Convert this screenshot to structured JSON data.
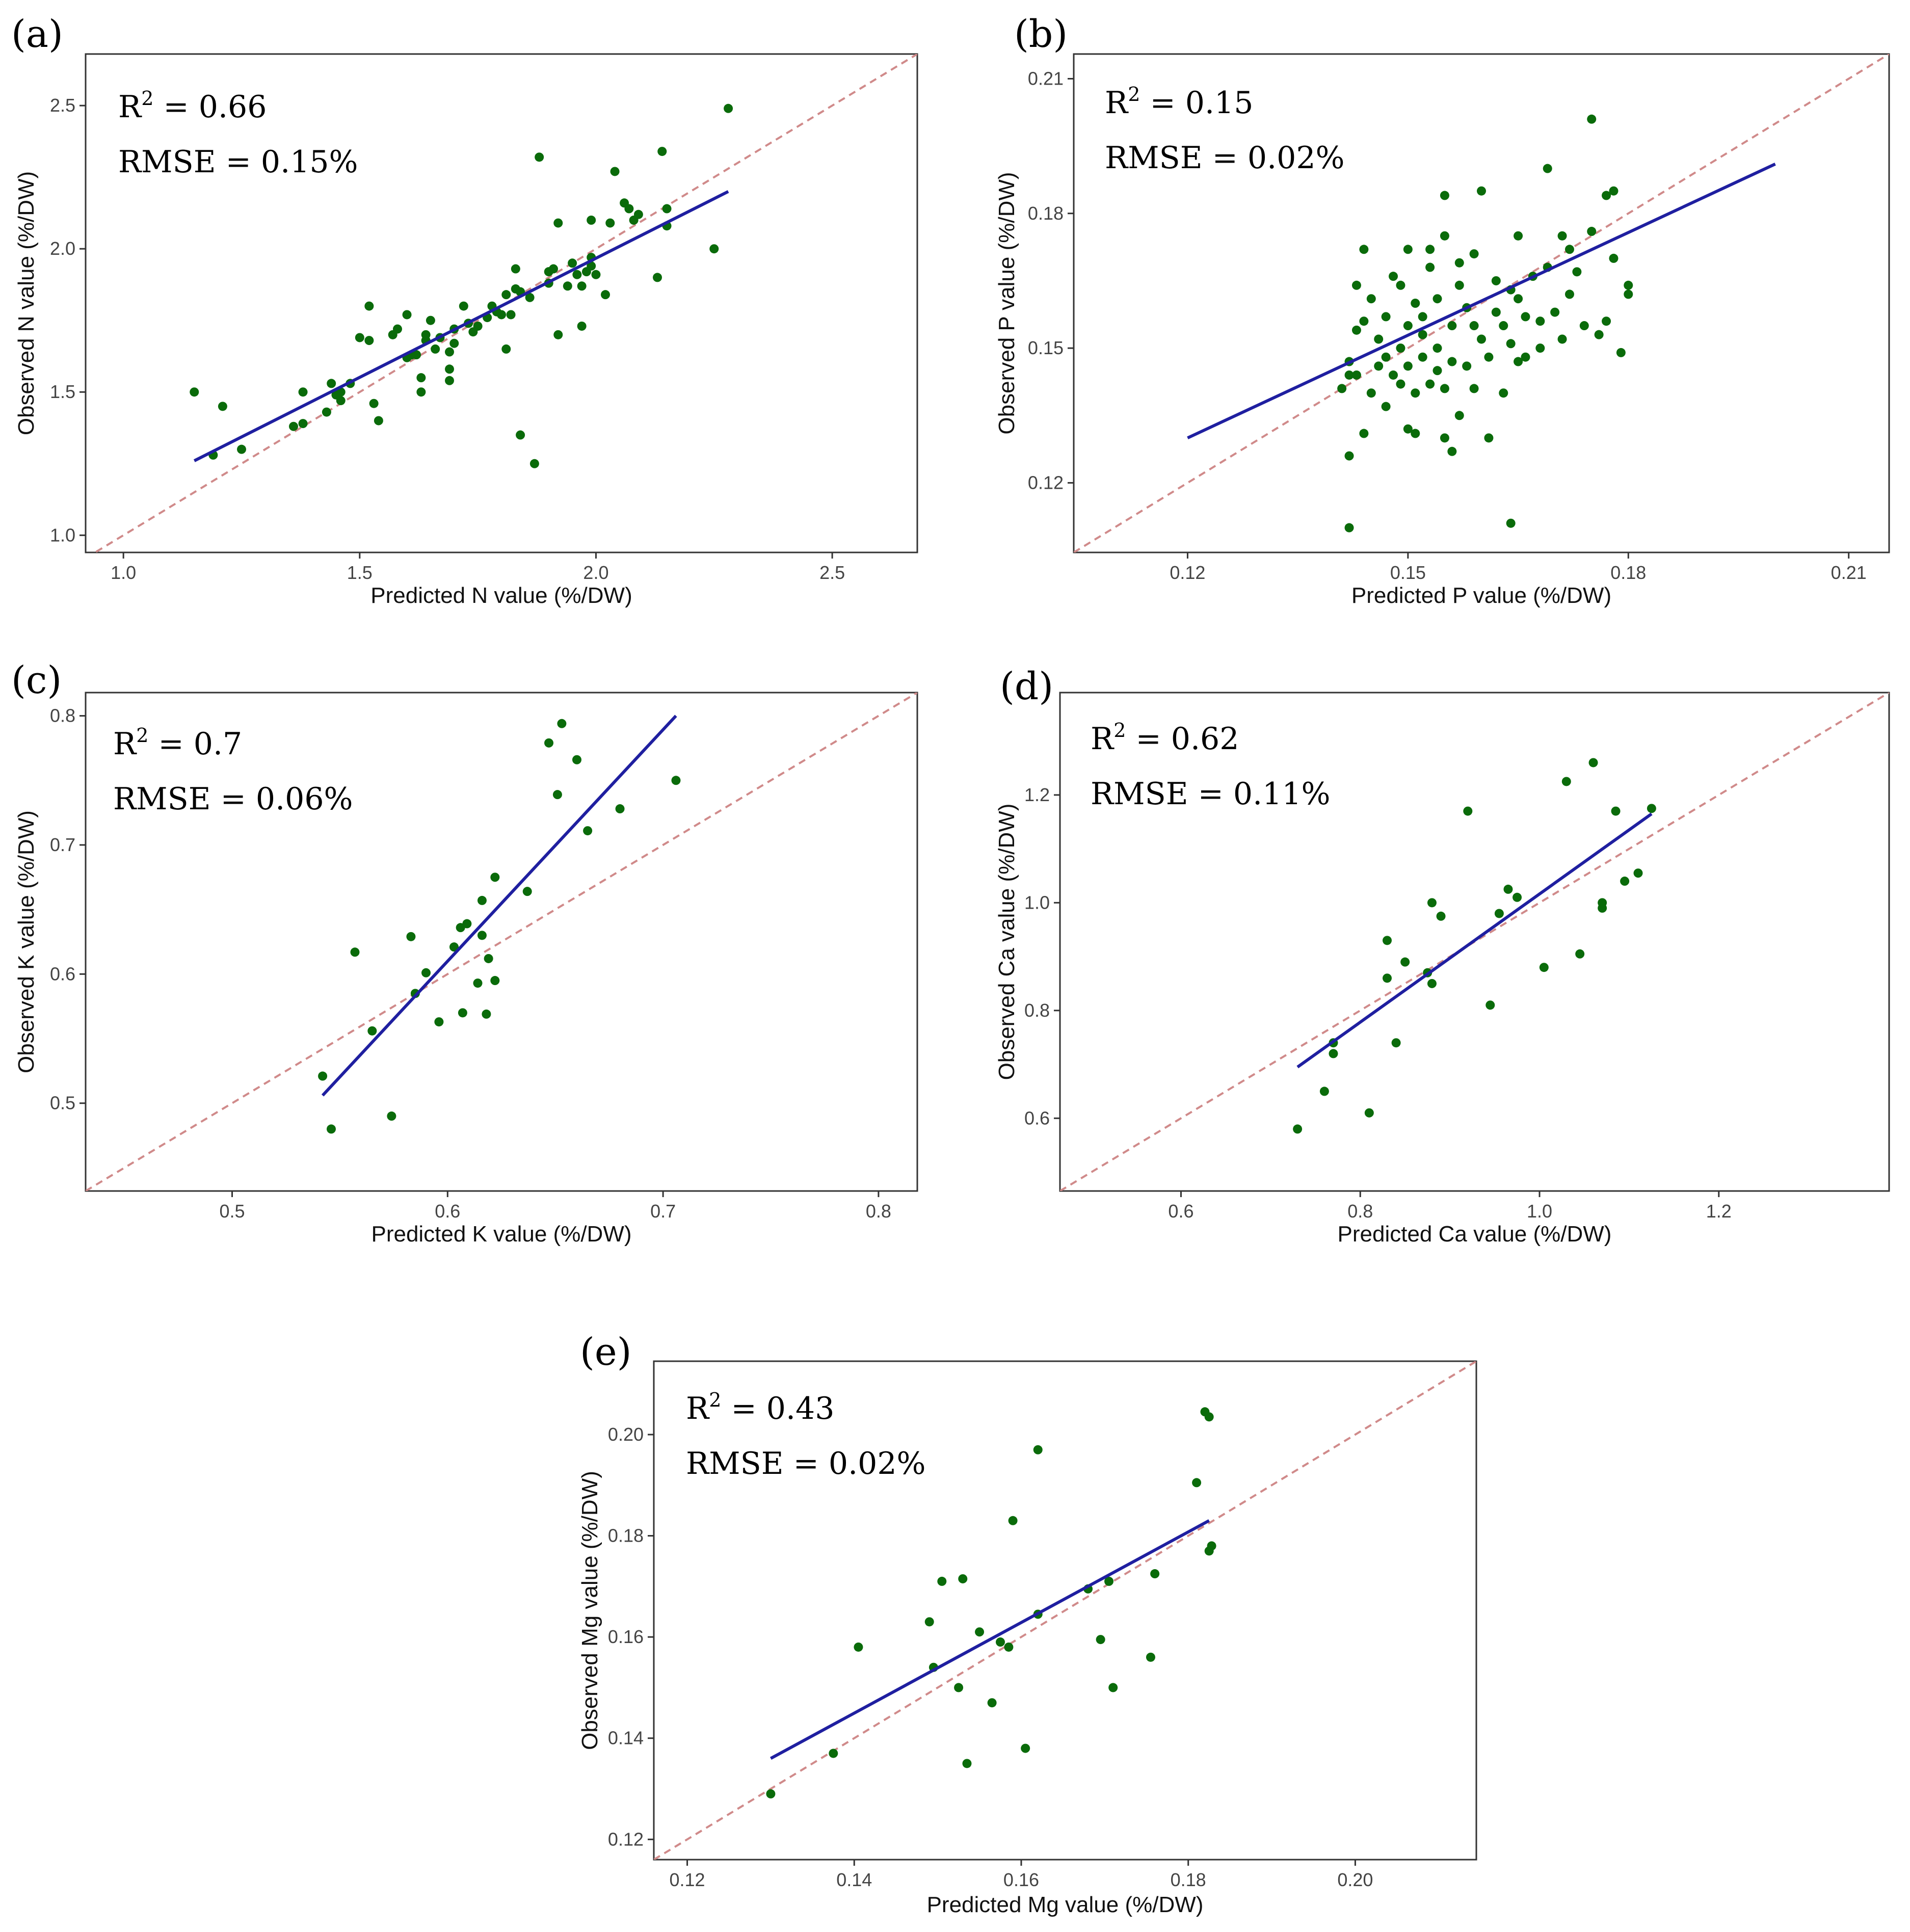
{
  "figure": {
    "colors": {
      "points": "#0a6b0a",
      "fit_line": "#1f1fa0",
      "identity_line": "#d08a8a",
      "frame": "#333333"
    }
  },
  "chart_data": [
    {
      "id": "a",
      "panel_label": "(a)",
      "type": "scatter",
      "xlabel": "Predicted N value (%/DW)",
      "ylabel": "Observed N value (%/DW)",
      "xlim": [
        0.92,
        2.68
      ],
      "ylim": [
        0.94,
        2.68
      ],
      "xticks": [
        1.0,
        1.5,
        2.0,
        2.5
      ],
      "yticks": [
        1.0,
        1.5,
        2.0,
        2.5
      ],
      "xtick_labels": [
        "1.0",
        "1.5",
        "2.0",
        "2.5"
      ],
      "ytick_labels": [
        "1.0",
        "1.5",
        "2.0",
        "2.5"
      ],
      "r2_label": "R",
      "r2_sup": "2",
      "r2_value": " = 0.66",
      "rmse_text": "RMSE = 0.15%",
      "fit_line": {
        "x": [
          1.15,
          2.28
        ],
        "y": [
          1.26,
          2.2
        ]
      },
      "points": [
        [
          1.15,
          1.5
        ],
        [
          1.19,
          1.28
        ],
        [
          1.21,
          1.45
        ],
        [
          1.25,
          1.3
        ],
        [
          1.36,
          1.38
        ],
        [
          1.38,
          1.39
        ],
        [
          1.38,
          1.5
        ],
        [
          1.43,
          1.43
        ],
        [
          1.44,
          1.53
        ],
        [
          1.45,
          1.49
        ],
        [
          1.46,
          1.5
        ],
        [
          1.46,
          1.47
        ],
        [
          1.48,
          1.53
        ],
        [
          1.5,
          1.69
        ],
        [
          1.52,
          1.8
        ],
        [
          1.52,
          1.68
        ],
        [
          1.53,
          1.46
        ],
        [
          1.54,
          1.4
        ],
        [
          1.57,
          1.7
        ],
        [
          1.58,
          1.72
        ],
        [
          1.6,
          1.77
        ],
        [
          1.6,
          1.62
        ],
        [
          1.61,
          1.63
        ],
        [
          1.62,
          1.63
        ],
        [
          1.63,
          1.55
        ],
        [
          1.63,
          1.5
        ],
        [
          1.64,
          1.7
        ],
        [
          1.64,
          1.68
        ],
        [
          1.65,
          1.75
        ],
        [
          1.66,
          1.65
        ],
        [
          1.67,
          1.69
        ],
        [
          1.69,
          1.58
        ],
        [
          1.69,
          1.54
        ],
        [
          1.69,
          1.64
        ],
        [
          1.7,
          1.67
        ],
        [
          1.7,
          1.72
        ],
        [
          1.72,
          1.8
        ],
        [
          1.73,
          1.74
        ],
        [
          1.74,
          1.71
        ],
        [
          1.75,
          1.73
        ],
        [
          1.77,
          1.76
        ],
        [
          1.78,
          1.8
        ],
        [
          1.79,
          1.78
        ],
        [
          1.8,
          1.77
        ],
        [
          1.81,
          1.84
        ],
        [
          1.81,
          1.65
        ],
        [
          1.82,
          1.77
        ],
        [
          1.83,
          1.93
        ],
        [
          1.83,
          1.86
        ],
        [
          1.84,
          1.35
        ],
        [
          1.84,
          1.85
        ],
        [
          1.86,
          1.83
        ],
        [
          1.87,
          1.25
        ],
        [
          1.88,
          2.32
        ],
        [
          1.9,
          1.88
        ],
        [
          1.9,
          1.92
        ],
        [
          1.91,
          1.93
        ],
        [
          1.92,
          1.7
        ],
        [
          1.92,
          2.09
        ],
        [
          1.94,
          1.87
        ],
        [
          1.95,
          1.95
        ],
        [
          1.96,
          1.91
        ],
        [
          1.97,
          1.73
        ],
        [
          1.97,
          1.87
        ],
        [
          1.98,
          1.92
        ],
        [
          1.99,
          2.1
        ],
        [
          1.99,
          1.97
        ],
        [
          1.99,
          1.94
        ],
        [
          2.0,
          1.91
        ],
        [
          2.02,
          1.84
        ],
        [
          2.03,
          2.09
        ],
        [
          2.04,
          2.27
        ],
        [
          2.06,
          2.16
        ],
        [
          2.07,
          2.14
        ],
        [
          2.08,
          2.1
        ],
        [
          2.09,
          2.12
        ],
        [
          2.13,
          1.9
        ],
        [
          2.14,
          2.34
        ],
        [
          2.15,
          2.08
        ],
        [
          2.15,
          2.14
        ],
        [
          2.25,
          2.0
        ],
        [
          2.28,
          2.49
        ]
      ]
    },
    {
      "id": "b",
      "panel_label": "(b)",
      "type": "scatter",
      "xlabel": "Predicted P value (%/DW)",
      "ylabel": "Observed P value (%/DW)",
      "xlim": [
        0.1045,
        0.2155
      ],
      "ylim": [
        0.1045,
        0.2155
      ],
      "xticks": [
        0.12,
        0.15,
        0.18,
        0.21
      ],
      "yticks": [
        0.12,
        0.15,
        0.18,
        0.21
      ],
      "xtick_labels": [
        "0.12",
        "0.15",
        "0.18",
        "0.21"
      ],
      "ytick_labels": [
        "0.12",
        "0.15",
        "0.18",
        "0.21"
      ],
      "r2_label": "R",
      "r2_sup": "2",
      "r2_value": " = 0.15",
      "rmse_text": "RMSE = 0.02%",
      "fit_line": {
        "x": [
          0.12,
          0.2
        ],
        "y": [
          0.13,
          0.191
        ]
      },
      "points": [
        [
          0.141,
          0.141
        ],
        [
          0.142,
          0.144
        ],
        [
          0.142,
          0.147
        ],
        [
          0.142,
          0.11
        ],
        [
          0.142,
          0.126
        ],
        [
          0.143,
          0.154
        ],
        [
          0.143,
          0.144
        ],
        [
          0.143,
          0.164
        ],
        [
          0.144,
          0.131
        ],
        [
          0.144,
          0.156
        ],
        [
          0.144,
          0.172
        ],
        [
          0.145,
          0.14
        ],
        [
          0.145,
          0.161
        ],
        [
          0.146,
          0.146
        ],
        [
          0.146,
          0.152
        ],
        [
          0.147,
          0.137
        ],
        [
          0.147,
          0.148
        ],
        [
          0.147,
          0.157
        ],
        [
          0.148,
          0.144
        ],
        [
          0.148,
          0.166
        ],
        [
          0.149,
          0.15
        ],
        [
          0.149,
          0.142
        ],
        [
          0.149,
          0.164
        ],
        [
          0.15,
          0.132
        ],
        [
          0.15,
          0.146
        ],
        [
          0.15,
          0.155
        ],
        [
          0.15,
          0.172
        ],
        [
          0.151,
          0.131
        ],
        [
          0.151,
          0.14
        ],
        [
          0.151,
          0.16
        ],
        [
          0.152,
          0.153
        ],
        [
          0.152,
          0.157
        ],
        [
          0.152,
          0.148
        ],
        [
          0.153,
          0.142
        ],
        [
          0.153,
          0.168
        ],
        [
          0.153,
          0.172
        ],
        [
          0.154,
          0.145
        ],
        [
          0.154,
          0.15
        ],
        [
          0.154,
          0.161
        ],
        [
          0.155,
          0.13
        ],
        [
          0.155,
          0.141
        ],
        [
          0.155,
          0.175
        ],
        [
          0.155,
          0.184
        ],
        [
          0.156,
          0.155
        ],
        [
          0.156,
          0.127
        ],
        [
          0.156,
          0.147
        ],
        [
          0.157,
          0.169
        ],
        [
          0.157,
          0.164
        ],
        [
          0.157,
          0.135
        ],
        [
          0.158,
          0.146
        ],
        [
          0.158,
          0.159
        ],
        [
          0.159,
          0.171
        ],
        [
          0.159,
          0.141
        ],
        [
          0.159,
          0.155
        ],
        [
          0.16,
          0.152
        ],
        [
          0.16,
          0.185
        ],
        [
          0.161,
          0.13
        ],
        [
          0.161,
          0.148
        ],
        [
          0.162,
          0.158
        ],
        [
          0.162,
          0.165
        ],
        [
          0.163,
          0.14
        ],
        [
          0.163,
          0.155
        ],
        [
          0.164,
          0.163
        ],
        [
          0.164,
          0.151
        ],
        [
          0.164,
          0.111
        ],
        [
          0.165,
          0.175
        ],
        [
          0.165,
          0.147
        ],
        [
          0.165,
          0.161
        ],
        [
          0.166,
          0.157
        ],
        [
          0.166,
          0.148
        ],
        [
          0.167,
          0.166
        ],
        [
          0.168,
          0.15
        ],
        [
          0.168,
          0.156
        ],
        [
          0.169,
          0.19
        ],
        [
          0.169,
          0.168
        ],
        [
          0.17,
          0.158
        ],
        [
          0.171,
          0.152
        ],
        [
          0.171,
          0.175
        ],
        [
          0.172,
          0.162
        ],
        [
          0.172,
          0.172
        ],
        [
          0.173,
          0.167
        ],
        [
          0.174,
          0.155
        ],
        [
          0.175,
          0.201
        ],
        [
          0.175,
          0.176
        ],
        [
          0.176,
          0.153
        ],
        [
          0.177,
          0.184
        ],
        [
          0.177,
          0.156
        ],
        [
          0.178,
          0.185
        ],
        [
          0.178,
          0.17
        ],
        [
          0.179,
          0.149
        ],
        [
          0.18,
          0.164
        ],
        [
          0.18,
          0.162
        ]
      ]
    },
    {
      "id": "c",
      "panel_label": "(c)",
      "type": "scatter",
      "xlabel": "Predicted K value (%/DW)",
      "ylabel": "Observed K value (%/DW)",
      "xlim": [
        0.432,
        0.818
      ],
      "ylim": [
        0.432,
        0.818
      ],
      "xticks": [
        0.5,
        0.6,
        0.7,
        0.8
      ],
      "yticks": [
        0.5,
        0.6,
        0.7,
        0.8
      ],
      "xtick_labels": [
        "0.5",
        "0.6",
        "0.7",
        "0.8"
      ],
      "ytick_labels": [
        "0.5",
        "0.6",
        "0.7",
        "0.8"
      ],
      "r2_label": "R",
      "r2_sup": "2",
      "r2_value": " = 0.7",
      "rmse_text": "RMSE = 0.06%",
      "fit_line": {
        "x": [
          0.542,
          0.706
        ],
        "y": [
          0.506,
          0.8
        ]
      },
      "points": [
        [
          0.542,
          0.521
        ],
        [
          0.546,
          0.48
        ],
        [
          0.557,
          0.617
        ],
        [
          0.565,
          0.556
        ],
        [
          0.574,
          0.49
        ],
        [
          0.583,
          0.629
        ],
        [
          0.585,
          0.585
        ],
        [
          0.59,
          0.601
        ],
        [
          0.596,
          0.563
        ],
        [
          0.603,
          0.621
        ],
        [
          0.606,
          0.636
        ],
        [
          0.607,
          0.57
        ],
        [
          0.609,
          0.639
        ],
        [
          0.614,
          0.593
        ],
        [
          0.616,
          0.657
        ],
        [
          0.616,
          0.63
        ],
        [
          0.618,
          0.569
        ],
        [
          0.619,
          0.612
        ],
        [
          0.622,
          0.595
        ],
        [
          0.622,
          0.675
        ],
        [
          0.637,
          0.664
        ],
        [
          0.647,
          0.779
        ],
        [
          0.651,
          0.739
        ],
        [
          0.653,
          0.794
        ],
        [
          0.66,
          0.766
        ],
        [
          0.665,
          0.711
        ],
        [
          0.68,
          0.728
        ],
        [
          0.706,
          0.75
        ]
      ]
    },
    {
      "id": "d",
      "panel_label": "(d)",
      "type": "scatter",
      "xlabel": "Predicted Ca value (%/DW)",
      "ylabel": "Observed Ca value (%/DW)",
      "xlim": [
        0.465,
        1.39
      ],
      "ylim": [
        0.465,
        1.39
      ],
      "xticks": [
        0.6,
        0.8,
        1.0,
        1.2
      ],
      "yticks": [
        0.6,
        0.8,
        1.0,
        1.2
      ],
      "xtick_labels": [
        "0.6",
        "0.8",
        "1.0",
        "1.2"
      ],
      "ytick_labels": [
        "0.6",
        "0.8",
        "1.0",
        "1.2"
      ],
      "r2_label": "R",
      "r2_sup": "2",
      "r2_value": " = 0.62",
      "rmse_text": "RMSE = 0.11%",
      "fit_line": {
        "x": [
          0.73,
          1.125
        ],
        "y": [
          0.695,
          1.165
        ]
      },
      "points": [
        [
          0.73,
          0.58
        ],
        [
          0.76,
          0.65
        ],
        [
          0.77,
          0.74
        ],
        [
          0.77,
          0.72
        ],
        [
          0.81,
          0.61
        ],
        [
          0.83,
          0.86
        ],
        [
          0.83,
          0.93
        ],
        [
          0.84,
          0.74
        ],
        [
          0.85,
          0.89
        ],
        [
          0.875,
          0.87
        ],
        [
          0.88,
          1.0
        ],
        [
          0.88,
          0.85
        ],
        [
          0.89,
          0.975
        ],
        [
          0.92,
          1.17
        ],
        [
          0.945,
          0.81
        ],
        [
          0.955,
          0.98
        ],
        [
          0.965,
          1.025
        ],
        [
          0.975,
          1.01
        ],
        [
          1.005,
          0.88
        ],
        [
          1.03,
          1.225
        ],
        [
          1.045,
          0.905
        ],
        [
          1.06,
          1.26
        ],
        [
          1.07,
          1.0
        ],
        [
          1.07,
          0.99
        ],
        [
          1.085,
          1.17
        ],
        [
          1.095,
          1.04
        ],
        [
          1.11,
          1.055
        ],
        [
          1.125,
          1.175
        ]
      ]
    },
    {
      "id": "e",
      "panel_label": "(e)",
      "type": "scatter",
      "xlabel": "Predicted Mg value (%/DW)",
      "ylabel": "Observed Mg value (%/DW)",
      "xlim": [
        0.116,
        0.2145
      ],
      "ylim": [
        0.116,
        0.2145
      ],
      "xticks": [
        0.12,
        0.14,
        0.16,
        0.18,
        0.2
      ],
      "yticks": [
        0.12,
        0.14,
        0.16,
        0.18,
        0.2
      ],
      "xtick_labels": [
        "0.12",
        "0.14",
        "0.16",
        "0.18",
        "0.20"
      ],
      "ytick_labels": [
        "0.12",
        "0.14",
        "0.16",
        "0.18",
        "0.20"
      ],
      "r2_label": "R",
      "r2_sup": "2",
      "r2_value": " = 0.43",
      "rmse_text": "RMSE = 0.02%",
      "fit_line": {
        "x": [
          0.13,
          0.1825
        ],
        "y": [
          0.136,
          0.183
        ]
      },
      "points": [
        [
          0.13,
          0.129
        ],
        [
          0.1375,
          0.137
        ],
        [
          0.1405,
          0.158
        ],
        [
          0.149,
          0.163
        ],
        [
          0.1495,
          0.154
        ],
        [
          0.1505,
          0.171
        ],
        [
          0.1525,
          0.15
        ],
        [
          0.153,
          0.1715
        ],
        [
          0.1535,
          0.135
        ],
        [
          0.155,
          0.161
        ],
        [
          0.1565,
          0.147
        ],
        [
          0.1575,
          0.159
        ],
        [
          0.1585,
          0.158
        ],
        [
          0.159,
          0.183
        ],
        [
          0.1605,
          0.138
        ],
        [
          0.162,
          0.1645
        ],
        [
          0.162,
          0.197
        ],
        [
          0.168,
          0.1695
        ],
        [
          0.1695,
          0.1595
        ],
        [
          0.1705,
          0.171
        ],
        [
          0.171,
          0.15
        ],
        [
          0.1755,
          0.156
        ],
        [
          0.176,
          0.1725
        ],
        [
          0.181,
          0.1905
        ],
        [
          0.182,
          0.2045
        ],
        [
          0.1825,
          0.2035
        ],
        [
          0.1825,
          0.177
        ],
        [
          0.1828,
          0.178
        ]
      ]
    }
  ]
}
